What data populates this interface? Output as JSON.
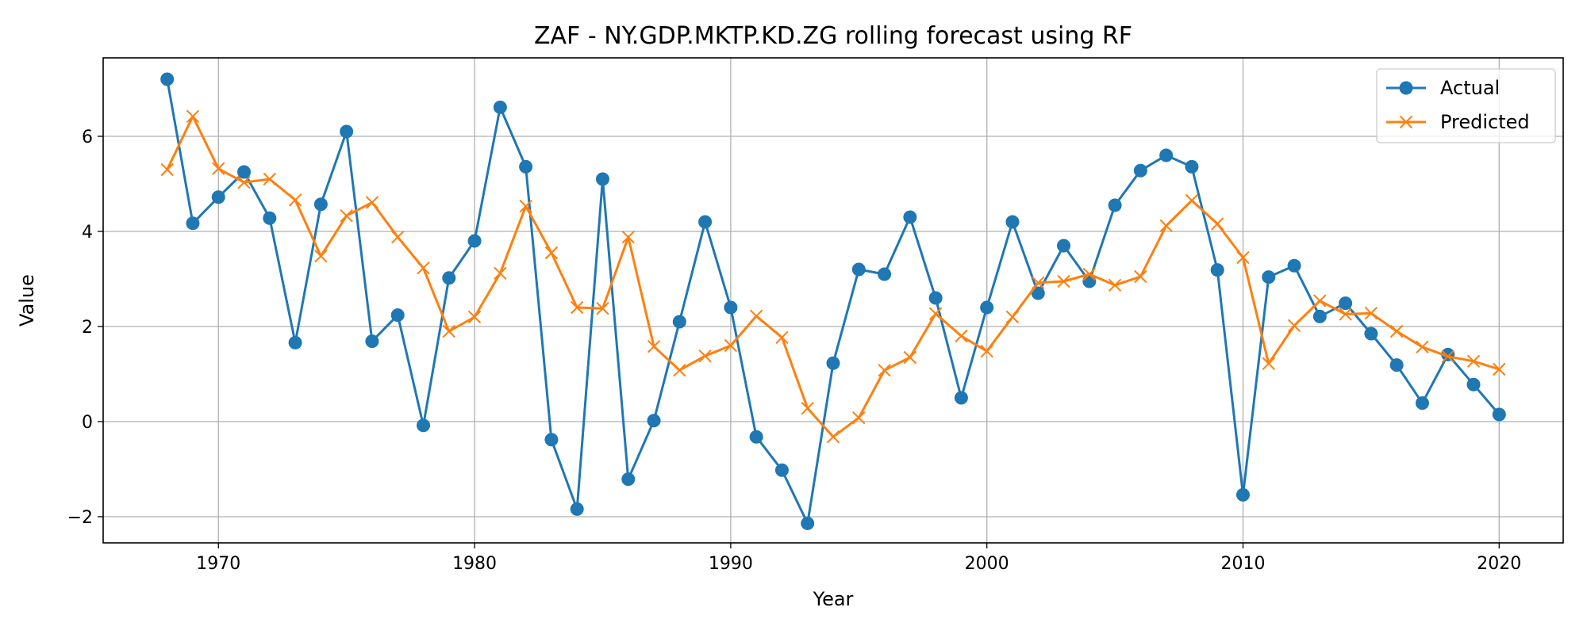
{
  "chart_data": {
    "type": "line",
    "title": "ZAF - NY.GDP.MKTP.KD.ZG rolling forecast using RF",
    "xlabel": "Year",
    "ylabel": "Value",
    "xlim": [
      1965.5,
      2022.5
    ],
    "ylim": [
      -2.55,
      7.65
    ],
    "xticks": [
      1970,
      1980,
      1990,
      2000,
      2010,
      2020
    ],
    "yticks": [
      -2,
      0,
      2,
      4,
      6
    ],
    "ytick_labels": [
      "−2",
      "0",
      "2",
      "4",
      "6"
    ],
    "grid": true,
    "legend_position": "top-right",
    "x": [
      1968,
      1969,
      1970,
      1971,
      1972,
      1973,
      1974,
      1975,
      1976,
      1977,
      1978,
      1979,
      1980,
      1981,
      1982,
      1983,
      1984,
      1985,
      1986,
      1987,
      1988,
      1989,
      1990,
      1991,
      1992,
      1993,
      1994,
      1995,
      1996,
      1997,
      1998,
      1999,
      2000,
      2001,
      2002,
      2003,
      2004,
      2005,
      2006,
      2007,
      2008,
      2009,
      2010,
      2011,
      2012,
      2013,
      2014,
      2015,
      2016,
      2017,
      2018,
      2019,
      2020
    ],
    "series": [
      {
        "name": "Actual",
        "color": "#1f77b4",
        "marker": "circle",
        "values": [
          7.2,
          4.17,
          4.72,
          5.25,
          4.28,
          1.66,
          4.57,
          6.1,
          1.69,
          2.24,
          -0.08,
          3.02,
          3.8,
          6.61,
          5.36,
          -0.38,
          -1.84,
          5.1,
          -1.21,
          0.02,
          2.1,
          4.2,
          2.4,
          -0.32,
          -1.02,
          -2.14,
          1.23,
          3.2,
          3.1,
          4.3,
          2.6,
          0.5,
          2.4,
          4.2,
          2.7,
          3.7,
          2.95,
          4.55,
          5.28,
          5.6,
          5.36,
          3.19,
          -1.54,
          3.04,
          3.28,
          2.21,
          2.49,
          1.85,
          1.19,
          0.39,
          1.41,
          0.78,
          0.15
        ]
      },
      {
        "name": "Predicted",
        "color": "#ff7f0e",
        "marker": "x",
        "values": [
          5.3,
          6.42,
          5.32,
          5.03,
          5.1,
          4.66,
          3.48,
          4.33,
          4.61,
          3.88,
          3.23,
          1.9,
          2.2,
          3.12,
          4.53,
          3.55,
          2.4,
          2.38,
          3.88,
          1.58,
          1.08,
          1.38,
          1.6,
          2.22,
          1.77,
          0.28,
          -0.32,
          0.08,
          1.08,
          1.35,
          2.27,
          1.8,
          1.48,
          2.2,
          2.92,
          2.95,
          3.1,
          2.87,
          3.05,
          4.12,
          4.65,
          4.16,
          3.45,
          1.22,
          2.02,
          2.54,
          2.26,
          2.28,
          1.9,
          1.57,
          1.37,
          1.27,
          1.1
        ]
      }
    ]
  }
}
